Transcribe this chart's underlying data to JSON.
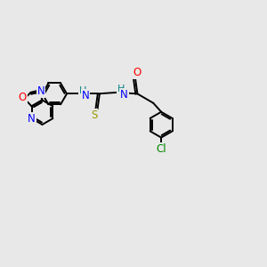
{
  "bg_color": "#e8e8e8",
  "bond_color": "#000000",
  "atom_colors": {
    "N": "#0000ff",
    "O": "#ff0000",
    "S": "#999900",
    "Cl": "#008800",
    "NH": "#008080",
    "C": "#000000"
  },
  "lw": 1.4,
  "fs": 8.5
}
